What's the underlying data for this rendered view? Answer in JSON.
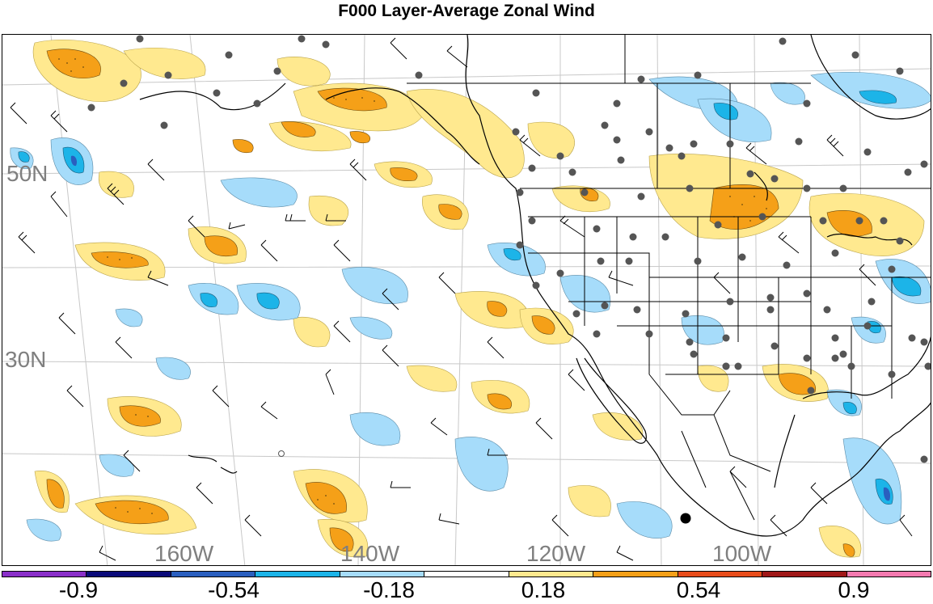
{
  "title": "F000 Layer-Average Zonal Wind",
  "map": {
    "lat_labels": [
      "50N",
      "30N"
    ],
    "lon_labels": [
      "160W",
      "140W",
      "120W",
      "100W"
    ],
    "colors": {
      "pos_light": "#ffe98f",
      "pos_mid": "#f5a018",
      "neg_light": "#a6dcfa",
      "neg_mid": "#1cb4e8",
      "neg_strong": "#2a5fbf",
      "station_dot": "#555555",
      "grid": "#c8c8c8"
    }
  },
  "colorbar": {
    "colors": [
      "#8a2fc9",
      "#0a0a7a",
      "#2a5fbf",
      "#1cb4e8",
      "#a6dcfa",
      "#ffffff",
      "#ffe98f",
      "#f5a018",
      "#e84c1a",
      "#a01818",
      "#f57ab0"
    ],
    "labels": [
      "-0.9",
      "-0.54",
      "-0.18",
      "0.18",
      "0.54",
      "0.9"
    ]
  }
}
